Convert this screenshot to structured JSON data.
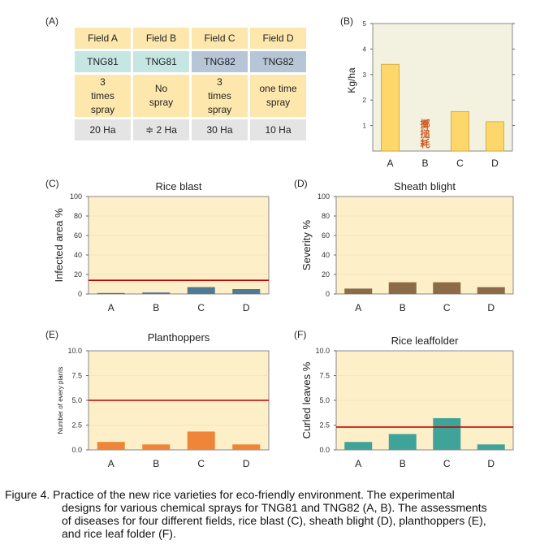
{
  "panel_labels": {
    "a": "(A)",
    "b": "(B)",
    "c": "(C)",
    "d": "(D)",
    "e": "(E)",
    "f": "(F)"
  },
  "design_table": {
    "fields": [
      "Field A",
      "Field B",
      "Field C",
      "Field D"
    ],
    "varieties": [
      "TNG81",
      "TNG81",
      "TNG82",
      "TNG82"
    ],
    "sprays": [
      [
        "3",
        "times",
        "spray"
      ],
      [
        "No",
        "spray"
      ],
      [
        "3",
        "times",
        "spray"
      ],
      [
        "one time",
        "spray"
      ]
    ],
    "areas": [
      "20 Ha",
      "≑ 2 Ha",
      "30 Ha",
      "10 Ha"
    ]
  },
  "colors": {
    "plot_bg": "#fdefc8",
    "panel_b_bg": "#f3f2e1",
    "threshold": "#c00000",
    "yield_bar": "#fed76a",
    "blast_bar": "#4e7a92",
    "sheath_bar": "#8b6b48",
    "plant_bar": "#ee8538",
    "leaf_bar": "#3fa39a",
    "stamp": "#d05a22"
  },
  "chart_data": [
    {
      "panel": "B",
      "type": "bar",
      "title": "",
      "ylabel": "Kg/ha",
      "categories": [
        "A",
        "B",
        "C",
        "D"
      ],
      "values": [
        3.4,
        null,
        1.55,
        1.15
      ],
      "ylim": [
        0,
        5
      ],
      "yticks": [
        "1",
        "2",
        "3",
        "4",
        "5"
      ],
      "annotation": "擲搥耗"
    },
    {
      "panel": "C",
      "type": "bar",
      "title": "Rice blast",
      "ylabel": "Infected area %",
      "categories": [
        "A",
        "B",
        "C",
        "D"
      ],
      "values": [
        1,
        1.5,
        7,
        5
      ],
      "threshold": 14,
      "ylim": [
        0,
        100
      ],
      "yticks": [
        "0",
        "20",
        "40",
        "60",
        "80",
        "100"
      ]
    },
    {
      "panel": "D",
      "type": "bar",
      "title": "Sheath blight",
      "ylabel": "Severity %",
      "categories": [
        "A",
        "B",
        "C",
        "D"
      ],
      "values": [
        5.5,
        12,
        12,
        7
      ],
      "ylim": [
        0,
        100
      ],
      "yticks": [
        "0",
        "20",
        "40",
        "60",
        "80",
        "100"
      ]
    },
    {
      "panel": "E",
      "type": "bar",
      "title": "Planthoppers",
      "ylabel": "Number of every plants",
      "categories": [
        "A",
        "B",
        "C",
        "D"
      ],
      "values": [
        0.8,
        0.55,
        1.85,
        0.55
      ],
      "threshold": 5.0,
      "ylim": [
        0,
        10
      ],
      "yticks": [
        "0.0",
        "2.5",
        "5.0",
        "7.5",
        "10.0"
      ]
    },
    {
      "panel": "F",
      "type": "bar",
      "title": "Rice leaffolder",
      "ylabel": "Curled leaves %",
      "categories": [
        "A",
        "B",
        "C",
        "D"
      ],
      "values": [
        0.8,
        1.6,
        3.2,
        0.55
      ],
      "threshold": 2.3,
      "ylim": [
        0,
        10
      ],
      "yticks": [
        "0.0",
        "2.5",
        "5.0",
        "7.5",
        "10.0"
      ]
    }
  ],
  "caption": {
    "line1": "Figure 4. Practice of the new rice varieties for eco-friendly environment. The experimental",
    "line2": "designs for various chemical sprays for TNG81 and TNG82 (A, B). The assessments",
    "line3": "of diseases for four different fields, rice blast (C), sheath blight (D), planthoppers (E),",
    "line4": "and rice leaf folder (F)."
  }
}
